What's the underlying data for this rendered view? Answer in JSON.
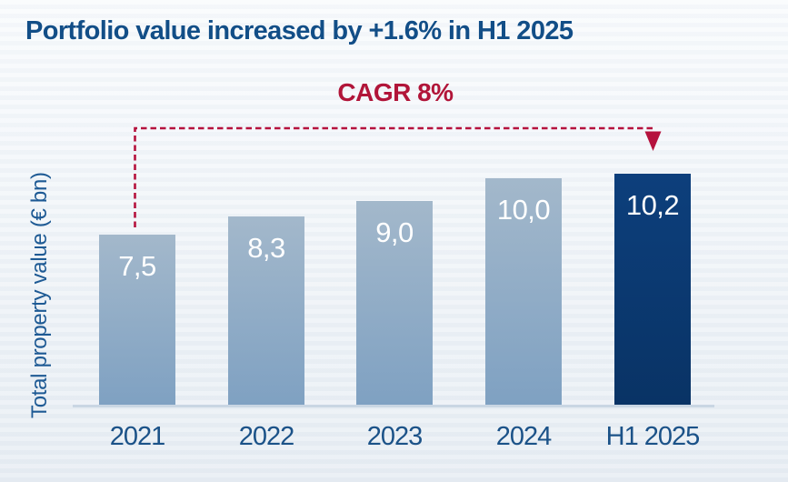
{
  "title": "Portfolio value increased by +1.6% in H1 2025",
  "y_axis_label": "Total property value (€ bn)",
  "annotation": {
    "label": "CAGR 8%",
    "color": "#b11539"
  },
  "chart_data": {
    "type": "bar",
    "categories": [
      "2021",
      "2022",
      "2023",
      "2024",
      "H1 2025"
    ],
    "values": [
      7.5,
      8.3,
      9.0,
      10.0,
      10.2
    ],
    "value_labels": [
      "7,5",
      "8,3",
      "9,0",
      "10,0",
      "10,2"
    ],
    "title": "Portfolio value increased by +1.6% in H1 2025",
    "xlabel": "",
    "ylabel": "Total property value (€ bn)",
    "ylim": [
      0,
      10.2
    ],
    "grid": false,
    "legend": false,
    "highlight_index": 4,
    "annotations": [
      "CAGR 8% dashed arrow from 2021 bar to H1 2025 bar"
    ]
  },
  "colors": {
    "title_text": "#124e87",
    "annotation_red": "#b11539",
    "bar_light_top": "#a3b8cb",
    "bar_light_bottom": "#7fa1c2",
    "bar_dark_top": "#0d3f7c",
    "bar_dark_bottom": "#093365",
    "axis_line": "#c9d6e3",
    "tick_label": "#1b5288",
    "value_label": "#ffffff",
    "background_top": "#f9fbfd",
    "background_bottom": "#e7edf3"
  }
}
